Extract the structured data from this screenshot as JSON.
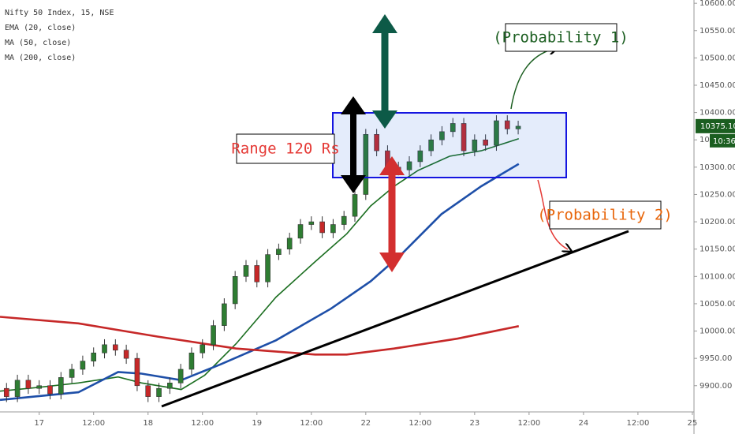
{
  "chart_data": {
    "type": "candlestick",
    "title": "Nifty 50 Index, 15, NSE",
    "up_color": "#2e7d32",
    "down_color": "#c62828",
    "x": [
      -0.6,
      -0.4,
      -0.2,
      0,
      0.2,
      0.4,
      0.6,
      0.8,
      1.0,
      1.2,
      1.4,
      1.6,
      1.8,
      2.0,
      2.2,
      2.4,
      2.6,
      2.8,
      3.0,
      3.2,
      3.4,
      3.6,
      3.8,
      4.0,
      4.2,
      4.4,
      4.6,
      4.8,
      5.0,
      5.2,
      5.4,
      5.6,
      5.8,
      6.0,
      6.2,
      6.4,
      6.6,
      6.8,
      7.0,
      7.2,
      7.4,
      7.6,
      7.8,
      8.0,
      8.2,
      8.4,
      8.6,
      8.8
    ],
    "open": [
      9895,
      9880,
      9910,
      9895,
      9900,
      9885,
      9915,
      9930,
      9945,
      9960,
      9975,
      9965,
      9950,
      9900,
      9880,
      9895,
      9905,
      9930,
      9960,
      9975,
      10010,
      10050,
      10100,
      10120,
      10090,
      10140,
      10150,
      10170,
      10195,
      10200,
      10180,
      10195,
      10210,
      10250,
      10360,
      10330,
      10300,
      10295,
      10310,
      10330,
      10350,
      10365,
      10380,
      10330,
      10350,
      10340,
      10385,
      10370
    ],
    "high": [
      9905,
      9920,
      9920,
      9910,
      9910,
      9925,
      9940,
      9955,
      9970,
      9985,
      9985,
      9975,
      9960,
      9910,
      9905,
      9915,
      9940,
      9970,
      9985,
      10020,
      10060,
      10110,
      10130,
      10130,
      10150,
      10160,
      10180,
      10205,
      10210,
      10210,
      10205,
      10220,
      10260,
      10370,
      10370,
      10340,
      10310,
      10320,
      10340,
      10360,
      10375,
      10390,
      10390,
      10360,
      10360,
      10395,
      10395,
      10385
    ],
    "low": [
      9870,
      9870,
      9885,
      9885,
      9875,
      9875,
      9905,
      9920,
      9935,
      9950,
      9955,
      9940,
      9890,
      9870,
      9870,
      9885,
      9895,
      9920,
      9950,
      9965,
      10000,
      10040,
      10090,
      10080,
      10080,
      10130,
      10140,
      10160,
      10185,
      10170,
      10170,
      10185,
      10200,
      10240,
      10320,
      10290,
      10285,
      10285,
      10300,
      10320,
      10340,
      10355,
      10320,
      10320,
      10330,
      10330,
      10360,
      10360
    ],
    "close": [
      9880,
      9910,
      9895,
      9900,
      9885,
      9915,
      9930,
      9945,
      9960,
      9975,
      9965,
      9950,
      9900,
      9880,
      9895,
      9905,
      9930,
      9960,
      9975,
      10010,
      10050,
      10100,
      10120,
      10090,
      10140,
      10150,
      10170,
      10195,
      10200,
      10180,
      10195,
      10210,
      10250,
      10360,
      10330,
      10300,
      10295,
      10310,
      10330,
      10350,
      10365,
      10380,
      10330,
      10350,
      10340,
      10385,
      10370,
      10375
    ],
    "lines": [
      {
        "name": "EMA (20, close)",
        "color": "#1b6e20",
        "x": [
          -0.72,
          0,
          0.72,
          1.45,
          1.88,
          2.61,
          3.04,
          3.62,
          4.35,
          5.07,
          5.65,
          6.09,
          6.52,
          6.96,
          7.54,
          8.12,
          8.81
        ],
        "values": [
          9890,
          9897,
          9905,
          9916,
          9905,
          9893,
          9919,
          9977,
          10062,
          10127,
          10178,
          10229,
          10265,
          10294,
          10320,
          10330,
          10352
        ]
      },
      {
        "name": "MA (50, close)",
        "color": "#1e4fa8",
        "x": [
          -0.72,
          0.72,
          1.45,
          1.88,
          2.61,
          3.33,
          4.35,
          5.36,
          6.09,
          6.67,
          7.39,
          8.12,
          8.81
        ],
        "values": [
          9874,
          9888,
          9925,
          9922,
          9910,
          9939,
          9983,
          10041,
          10091,
          10142,
          10214,
          10265,
          10306
        ]
      },
      {
        "name": "MA (200, close)",
        "color": "#c62828",
        "x": [
          -0.72,
          0.72,
          2.17,
          3.62,
          5.07,
          5.65,
          6.52,
          7.68,
          8.81
        ],
        "values": [
          10026,
          10014,
          9990,
          9968,
          9957,
          9957,
          9968,
          9986,
          10009
        ]
      }
    ],
    "ylim": [
      9852,
      10606
    ],
    "yticks": [
      {
        "value": 9900,
        "label": "9900.00"
      },
      {
        "value": 9950,
        "label": "9950.00"
      },
      {
        "value": 10000,
        "label": "10000.00"
      },
      {
        "value": 10050,
        "label": "10050.00"
      },
      {
        "value": 10100,
        "label": "10100.00"
      },
      {
        "value": 10150,
        "label": "10150.00"
      },
      {
        "value": 10200,
        "label": "10200.00"
      },
      {
        "value": 10250,
        "label": "10250.00"
      },
      {
        "value": 10300,
        "label": "10300.00"
      },
      {
        "value": 10350,
        "label": "10350.00"
      },
      {
        "value": 10400,
        "label": "10400.00"
      },
      {
        "value": 10450,
        "label": "10450.00"
      },
      {
        "value": 10500,
        "label": "10500.00"
      },
      {
        "value": 10550,
        "label": "10550.00"
      },
      {
        "value": 10600,
        "label": "10600.00"
      }
    ],
    "xlim": [
      -0.72,
      12.03
    ],
    "xticks": [
      {
        "value": 0,
        "label": "17"
      },
      {
        "value": 1,
        "label": "12:00"
      },
      {
        "value": 2,
        "label": "18"
      },
      {
        "value": 3,
        "label": "12:00"
      },
      {
        "value": 4,
        "label": "19"
      },
      {
        "value": 5,
        "label": "12:00"
      },
      {
        "value": 6,
        "label": "22"
      },
      {
        "value": 7,
        "label": "12:00"
      },
      {
        "value": 8,
        "label": "23"
      },
      {
        "value": 9,
        "label": "12:00"
      },
      {
        "value": 10,
        "label": "24"
      },
      {
        "value": 11,
        "label": "12:00"
      },
      {
        "value": 12,
        "label": "25"
      }
    ],
    "last_price": {
      "value": 10375.1,
      "label": "10375.10"
    },
    "countdown": "10:36",
    "annotations": {
      "range": "Range 120 Rs",
      "probability_1": "(Probability 1)",
      "probability_2": "(Probability 2)"
    }
  }
}
